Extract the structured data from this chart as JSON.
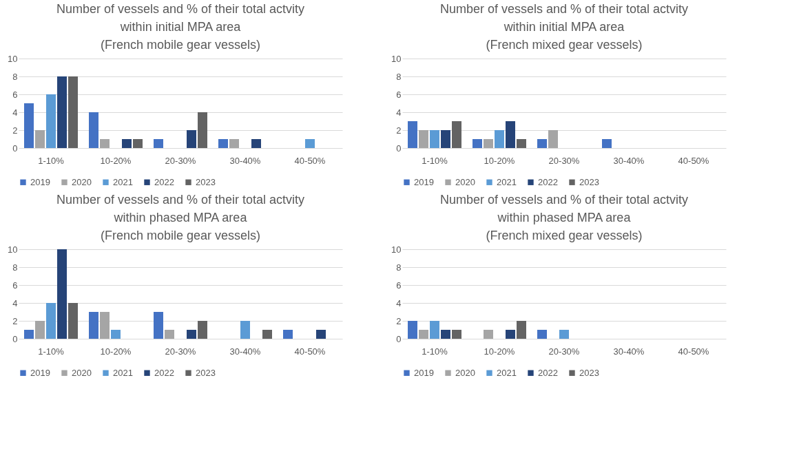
{
  "chart_data": [
    {
      "type": "bar",
      "title": "Number of vessels and % of their total actvity\nwithin initial MPA area\n(French mobile gear vessels)",
      "categories": [
        "1-10%",
        "10-20%",
        "20-30%",
        "30-40%",
        "40-50%"
      ],
      "series": [
        {
          "name": "2019",
          "color": "#4472c4",
          "values": [
            5,
            4,
            1,
            1,
            0
          ]
        },
        {
          "name": "2020",
          "color": "#a5a5a5",
          "values": [
            2,
            1,
            0,
            1,
            0
          ]
        },
        {
          "name": "2021",
          "color": "#5b9bd5",
          "values": [
            6,
            0,
            0,
            0,
            1
          ]
        },
        {
          "name": "2022",
          "color": "#264478",
          "values": [
            8,
            1,
            2,
            1,
            0
          ]
        },
        {
          "name": "2023",
          "color": "#636363",
          "values": [
            8,
            1,
            4,
            0,
            0
          ]
        }
      ],
      "ylim": [
        0,
        10
      ],
      "yticks": [
        0,
        2,
        4,
        6,
        8,
        10
      ],
      "grid": "y",
      "legend": "bottom"
    },
    {
      "type": "bar",
      "title": "Number of vessels and % of their total actvity\nwithin initial MPA area\n(French mixed gear vessels)",
      "categories": [
        "1-10%",
        "10-20%",
        "20-30%",
        "30-40%",
        "40-50%"
      ],
      "series": [
        {
          "name": "2019",
          "color": "#4472c4",
          "values": [
            3,
            1,
            1,
            1,
            0
          ]
        },
        {
          "name": "2020",
          "color": "#a5a5a5",
          "values": [
            2,
            1,
            2,
            0,
            0
          ]
        },
        {
          "name": "2021",
          "color": "#5b9bd5",
          "values": [
            2,
            2,
            0,
            0,
            0
          ]
        },
        {
          "name": "2022",
          "color": "#264478",
          "values": [
            2,
            3,
            0,
            0,
            0
          ]
        },
        {
          "name": "2023",
          "color": "#636363",
          "values": [
            3,
            1,
            0,
            0,
            0
          ]
        }
      ],
      "ylim": [
        0,
        10
      ],
      "yticks": [
        0,
        2,
        4,
        6,
        8,
        10
      ],
      "grid": "y",
      "legend": "bottom"
    },
    {
      "type": "bar",
      "title": "Number of vessels and % of their total actvity\nwithin phased MPA area\n(French mobile gear vessels)",
      "categories": [
        "1-10%",
        "10-20%",
        "20-30%",
        "30-40%",
        "40-50%"
      ],
      "series": [
        {
          "name": "2019",
          "color": "#4472c4",
          "values": [
            1,
            3,
            3,
            0,
            1
          ]
        },
        {
          "name": "2020",
          "color": "#a5a5a5",
          "values": [
            2,
            3,
            1,
            0,
            0
          ]
        },
        {
          "name": "2021",
          "color": "#5b9bd5",
          "values": [
            4,
            1,
            0,
            2,
            0
          ]
        },
        {
          "name": "2022",
          "color": "#264478",
          "values": [
            10,
            0,
            1,
            0,
            1
          ]
        },
        {
          "name": "2023",
          "color": "#636363",
          "values": [
            4,
            0,
            2,
            1,
            0
          ]
        }
      ],
      "ylim": [
        0,
        10
      ],
      "yticks": [
        0,
        2,
        4,
        6,
        8,
        10
      ],
      "grid": "y",
      "legend": "bottom"
    },
    {
      "type": "bar",
      "title": "Number of vessels and % of their total actvity\nwithin phased MPA area\n(French mixed gear vessels)",
      "categories": [
        "1-10%",
        "10-20%",
        "20-30%",
        "30-40%",
        "40-50%"
      ],
      "series": [
        {
          "name": "2019",
          "color": "#4472c4",
          "values": [
            2,
            0,
            1,
            0,
            0
          ]
        },
        {
          "name": "2020",
          "color": "#a5a5a5",
          "values": [
            1,
            1,
            0,
            0,
            0
          ]
        },
        {
          "name": "2021",
          "color": "#5b9bd5",
          "values": [
            2,
            0,
            1,
            0,
            0
          ]
        },
        {
          "name": "2022",
          "color": "#264478",
          "values": [
            1,
            1,
            0,
            0,
            0
          ]
        },
        {
          "name": "2023",
          "color": "#636363",
          "values": [
            1,
            2,
            0,
            0,
            0
          ]
        }
      ],
      "ylim": [
        0,
        10
      ],
      "yticks": [
        0,
        2,
        4,
        6,
        8,
        10
      ],
      "grid": "y",
      "legend": "bottom"
    }
  ]
}
